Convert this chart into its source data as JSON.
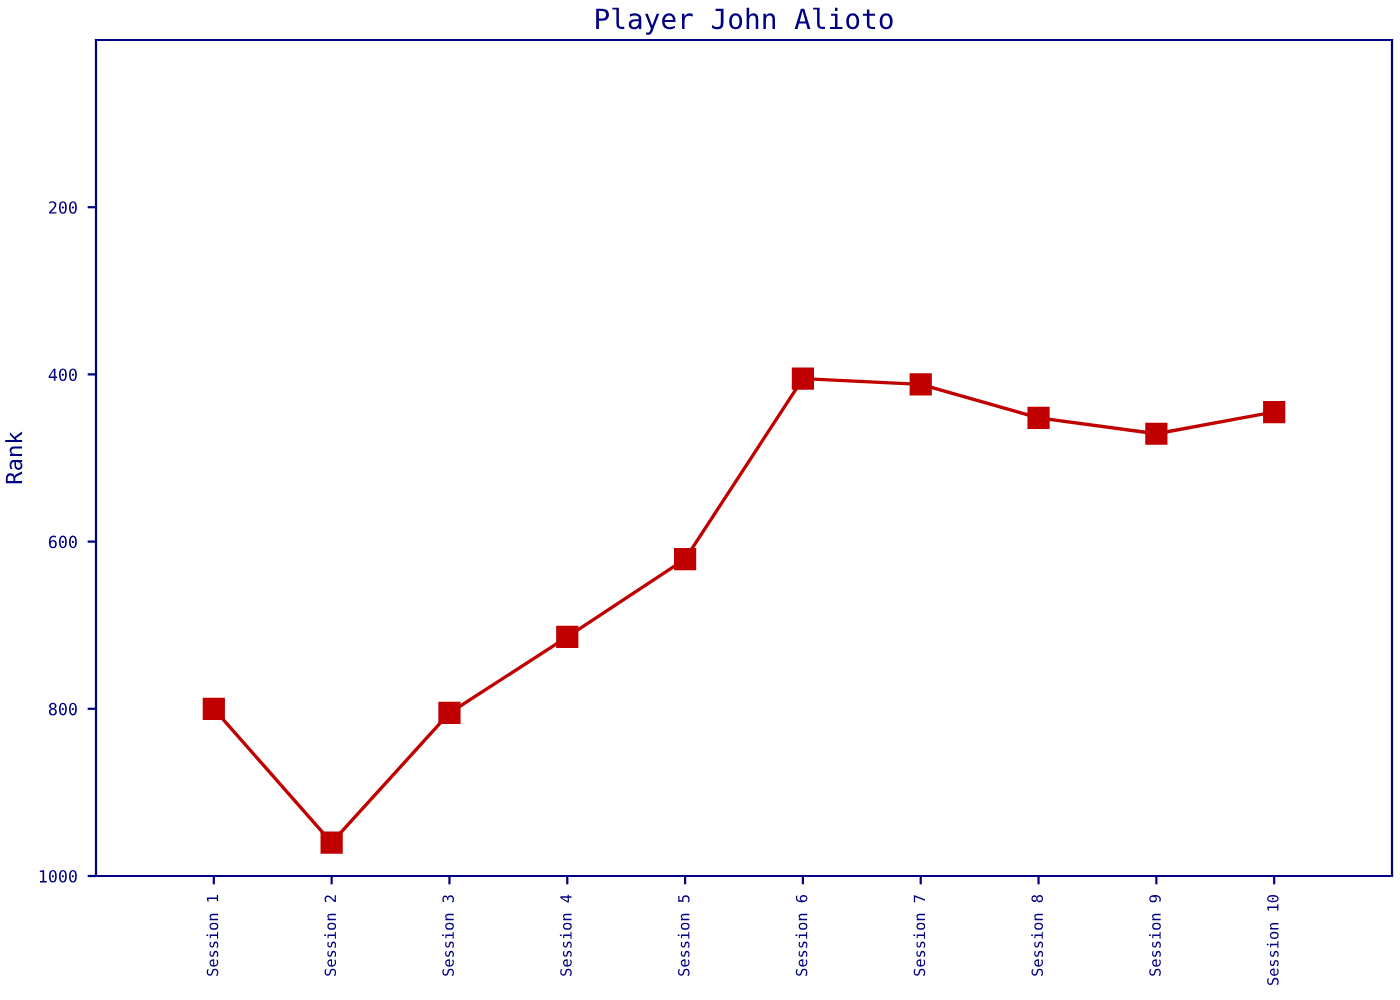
{
  "chart_data": {
    "type": "line",
    "title": "Player John Alioto",
    "ylabel": "Rank",
    "categories": [
      "Session 1",
      "Session 2",
      "Session 3",
      "Session 4",
      "Session 5",
      "Session 6",
      "Session 7",
      "Session 8",
      "Session 9",
      "Session 10"
    ],
    "series": [
      {
        "color": "#c00000",
        "values": [
          800,
          960,
          805,
          714,
          621,
          405,
          412,
          452,
          471,
          445
        ]
      }
    ],
    "ylim": [
      1000,
      0
    ],
    "yticks": [
      200,
      400,
      600,
      800,
      1000
    ],
    "marker": "square",
    "line_style": "solid",
    "grid": false,
    "legend": false
  }
}
